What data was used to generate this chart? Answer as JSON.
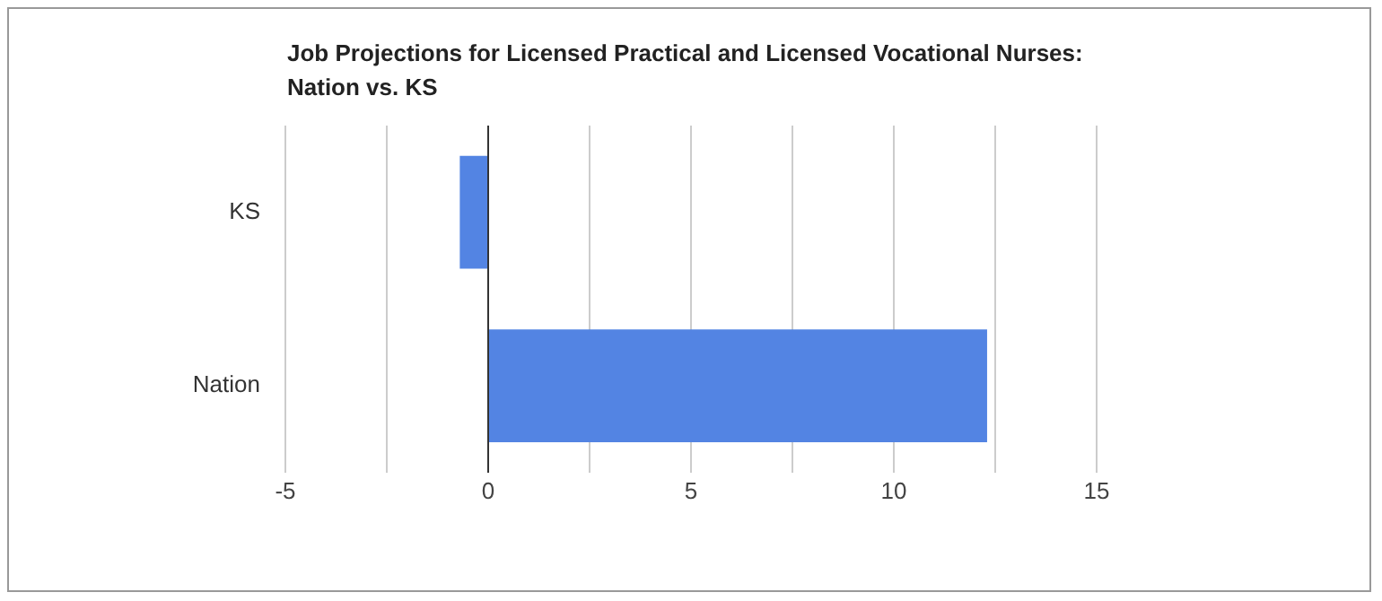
{
  "chart_data": {
    "type": "bar",
    "orientation": "horizontal",
    "title": "Job Projections for Licensed Practical and Licensed Vocational Nurses: Nation vs. KS",
    "categories": [
      "KS",
      "Nation"
    ],
    "values": [
      -0.7,
      12.3
    ],
    "color": "#5384e3",
    "xlim": [
      -5,
      15
    ],
    "xticks": [
      -5,
      {
        "value": -2.5,
        "label": null
      },
      0,
      {
        "value": 2.5,
        "label": null
      },
      5,
      {
        "value": 7.5,
        "label": null
      },
      10,
      {
        "value": 12.5,
        "label": null
      },
      15
    ],
    "grid": "x",
    "legend": false
  }
}
